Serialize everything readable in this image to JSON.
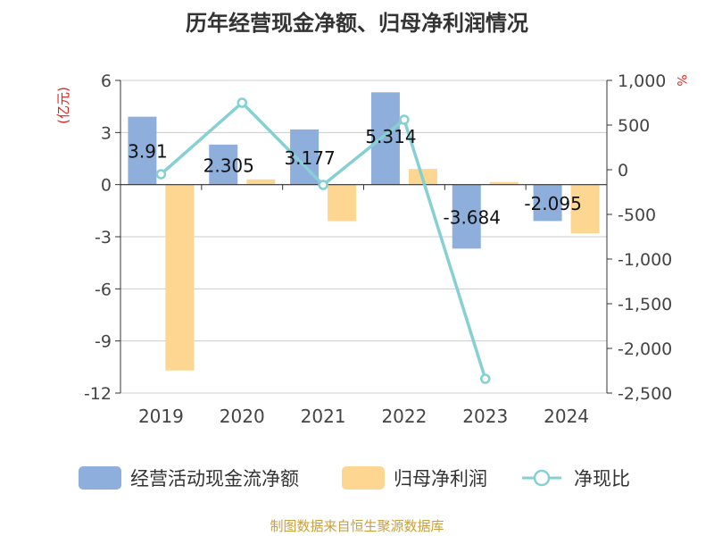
{
  "chart_data": {
    "type": "bar",
    "title": "历年经营现金净额、归母净利润情况",
    "left_unit": "(亿元)",
    "right_unit": "%",
    "categories": [
      "2019",
      "2020",
      "2021",
      "2022",
      "2023",
      "2024"
    ],
    "left_axis": {
      "min": -12,
      "max": 6,
      "ticks": [
        6,
        3,
        0,
        -3,
        -6,
        -9,
        -12
      ],
      "tick_labels": [
        "6",
        "3",
        "0",
        "-3",
        "-6",
        "-9",
        "-12"
      ]
    },
    "right_axis": {
      "min": -2500,
      "max": 1000,
      "ticks": [
        1000,
        500,
        0,
        -500,
        -1000,
        -1500,
        -2000,
        -2500
      ],
      "tick_labels": [
        "1,000",
        "500",
        "0",
        "-500",
        "-1,000",
        "-1,500",
        "-2,000",
        "-2,500"
      ]
    },
    "series": [
      {
        "name": "经营活动现金流净额",
        "kind": "bar",
        "axis": "left",
        "color": "#8eaedb",
        "values": [
          3.91,
          2.305,
          3.177,
          5.314,
          -3.684,
          -2.095
        ],
        "labels": [
          "3.91",
          "2.305",
          "3.177",
          "5.314",
          "-3.684",
          "-2.095"
        ]
      },
      {
        "name": "归母净利润",
        "kind": "bar",
        "axis": "left",
        "color": "#fdd692",
        "values": [
          -10.7,
          0.3,
          -2.1,
          0.9,
          0.15,
          -2.8
        ]
      },
      {
        "name": "净现比",
        "kind": "line",
        "axis": "right",
        "color": "#86d0d3",
        "values": [
          -50,
          750,
          -170,
          560,
          -2340,
          null
        ]
      }
    ],
    "grid": true,
    "legend_position": "bottom"
  },
  "footer": {
    "source": "制图数据来自恒生聚源数据库"
  }
}
